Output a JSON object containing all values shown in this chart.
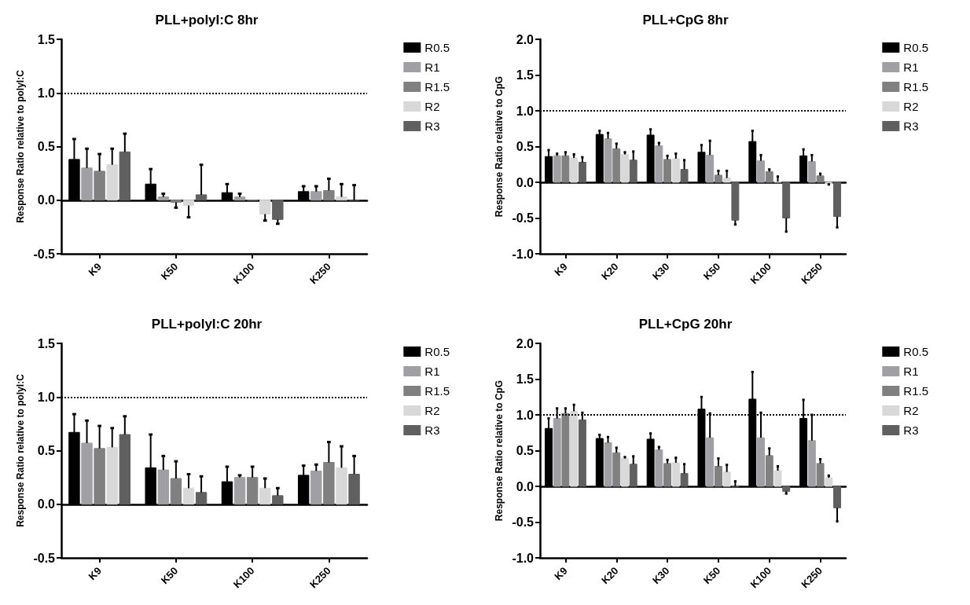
{
  "chart_data": [
    {
      "type": "bar",
      "title": "PLL+polyI:C 8hr",
      "ylabel": "Response Ratio relative to polyI:C",
      "categories": [
        "K9",
        "K50",
        "K100",
        "K250"
      ],
      "ylim": [
        -0.5,
        1.5
      ],
      "yticks": [
        -0.5,
        {
          "value": 0,
          "label": "0.0"
        },
        0.5,
        {
          "value": 1,
          "label": "1.0"
        },
        1.5
      ],
      "grid": false,
      "legend": "top right",
      "ref_lines": [
        {
          "axis": "y",
          "value": 1,
          "color": "#000000",
          "line_style": "dotted"
        }
      ],
      "series": [
        {
          "name": "R0.5",
          "color": "#000000",
          "values": [
            0.38,
            0.15,
            0.07,
            0.08
          ],
          "errors": [
            [
              0.38,
              0.57
            ],
            [
              0.15,
              0.29
            ],
            [
              0.07,
              0.15
            ],
            [
              0.08,
              0.13
            ]
          ]
        },
        {
          "name": "R1",
          "color": "#a0a0a4",
          "values": [
            0.3,
            0.03,
            0.03,
            0.08
          ],
          "errors": [
            [
              0.3,
              0.48
            ],
            [
              0.03,
              0.06
            ],
            [
              0.03,
              0.06
            ],
            [
              0.08,
              0.13
            ]
          ]
        },
        {
          "name": "R1.5",
          "color": "#808080",
          "values": [
            0.27,
            -0.02,
            0.0,
            0.09
          ],
          "errors": [
            [
              0.27,
              0.43
            ],
            [
              -0.07,
              -0.02
            ],
            null,
            [
              0.09,
              0.2
            ]
          ]
        },
        {
          "name": "R2",
          "color": "#d8d8d8",
          "values": [
            0.33,
            -0.05,
            -0.13,
            0.03
          ],
          "errors": [
            [
              0.33,
              0.48
            ],
            [
              -0.16,
              -0.05
            ],
            [
              -0.19,
              -0.13
            ],
            [
              0.03,
              0.15
            ]
          ]
        },
        {
          "name": "R3",
          "color": "#606060",
          "values": [
            0.45,
            0.05,
            -0.18,
            0.0
          ],
          "errors": [
            [
              0.45,
              0.62
            ],
            [
              0.05,
              0.33
            ],
            [
              -0.22,
              -0.18
            ],
            [
              0.0,
              0.14
            ]
          ]
        }
      ]
    },
    {
      "type": "bar",
      "title": "PLL+CpG 8hr",
      "ylabel": "Response Ratio relative to CpG",
      "categories": [
        "K9",
        "K20",
        "K30",
        "K50",
        "K100",
        "K250"
      ],
      "ylim": [
        -1,
        2
      ],
      "yticks": [
        {
          "value": -1,
          "label": "-1.0"
        },
        -0.5,
        {
          "value": 0,
          "label": "0.0"
        },
        0.5,
        {
          "value": 1,
          "label": "1.0"
        },
        1.5,
        {
          "value": 2,
          "label": "2.0"
        }
      ],
      "grid": false,
      "legend": "top right",
      "ref_lines": [
        {
          "axis": "y",
          "value": 1,
          "color": "#000000",
          "line_style": "dotted"
        }
      ],
      "series": [
        {
          "name": "R0.5",
          "color": "#000000",
          "values": [
            0.36,
            0.67,
            0.66,
            0.42,
            0.57,
            0.37
          ],
          "errors": [
            [
              0.36,
              0.45
            ],
            [
              0.67,
              0.72
            ],
            [
              0.66,
              0.74
            ],
            [
              0.42,
              0.52
            ],
            [
              0.57,
              0.72
            ],
            [
              0.37,
              0.46
            ]
          ]
        },
        {
          "name": "R1",
          "color": "#a0a0a4",
          "values": [
            0.37,
            0.61,
            0.51,
            0.38,
            0.3,
            0.29
          ],
          "errors": [
            [
              0.37,
              0.4
            ],
            [
              0.61,
              0.69
            ],
            [
              0.51,
              0.55
            ],
            [
              0.38,
              0.58
            ],
            [
              0.3,
              0.38
            ],
            [
              0.29,
              0.38
            ]
          ]
        },
        {
          "name": "R1.5",
          "color": "#808080",
          "values": [
            0.37,
            0.47,
            0.32,
            0.1,
            0.15,
            0.09
          ],
          "errors": [
            [
              0.37,
              0.42
            ],
            [
              0.47,
              0.54
            ],
            [
              0.32,
              0.37
            ],
            [
              0.1,
              0.16
            ],
            [
              0.15,
              0.18
            ],
            [
              0.09,
              0.12
            ]
          ]
        },
        {
          "name": "R2",
          "color": "#d8d8d8",
          "values": [
            0.34,
            0.39,
            0.33,
            0.06,
            0.01,
            -0.02
          ],
          "errors": [
            [
              0.34,
              0.39
            ],
            [
              0.39,
              0.42
            ],
            [
              0.33,
              0.4
            ],
            [
              0.06,
              0.16
            ],
            [
              0.01,
              0.08
            ],
            [
              -0.03,
              -0.02
            ]
          ]
        },
        {
          "name": "R3",
          "color": "#606060",
          "values": [
            0.28,
            0.31,
            0.18,
            -0.53,
            -0.5,
            -0.48
          ],
          "errors": [
            [
              0.28,
              0.35
            ],
            [
              0.31,
              0.43
            ],
            [
              0.18,
              0.31
            ],
            [
              -0.59,
              -0.53
            ],
            [
              -0.69,
              -0.5
            ],
            [
              -0.63,
              -0.48
            ]
          ]
        }
      ]
    },
    {
      "type": "bar",
      "title": "PLL+polyI:C 20hr",
      "ylabel": "Response Ratio relative to polyI:C",
      "categories": [
        "K9",
        "K50",
        "K100",
        "K250"
      ],
      "ylim": [
        -0.5,
        1.5
      ],
      "yticks": [
        -0.5,
        {
          "value": 0,
          "label": "0.0"
        },
        0.5,
        {
          "value": 1,
          "label": "1.0"
        },
        1.5
      ],
      "grid": false,
      "legend": "top right",
      "ref_lines": [
        {
          "axis": "y",
          "value": 1,
          "color": "#000000",
          "line_style": "dotted"
        }
      ],
      "series": [
        {
          "name": "R0.5",
          "color": "#000000",
          "values": [
            0.67,
            0.34,
            0.21,
            0.27
          ],
          "errors": [
            [
              0.67,
              0.84
            ],
            [
              0.34,
              0.65
            ],
            [
              0.21,
              0.35
            ],
            [
              0.27,
              0.36
            ]
          ]
        },
        {
          "name": "R1",
          "color": "#a0a0a4",
          "values": [
            0.57,
            0.32,
            0.25,
            0.31
          ],
          "errors": [
            [
              0.57,
              0.78
            ],
            [
              0.32,
              0.45
            ],
            [
              0.25,
              0.27
            ],
            [
              0.31,
              0.37
            ]
          ]
        },
        {
          "name": "R1.5",
          "color": "#808080",
          "values": [
            0.52,
            0.24,
            0.25,
            0.39
          ],
          "errors": [
            [
              0.52,
              0.73
            ],
            [
              0.24,
              0.4
            ],
            [
              0.25,
              0.35
            ],
            [
              0.39,
              0.58
            ]
          ]
        },
        {
          "name": "R2",
          "color": "#d8d8d8",
          "values": [
            0.53,
            0.15,
            0.15,
            0.34
          ],
          "errors": [
            [
              0.53,
              0.71
            ],
            [
              0.15,
              0.28
            ],
            [
              0.15,
              0.24
            ],
            [
              0.34,
              0.54
            ]
          ]
        },
        {
          "name": "R3",
          "color": "#606060",
          "values": [
            0.65,
            0.11,
            0.08,
            0.28
          ],
          "errors": [
            [
              0.65,
              0.82
            ],
            [
              0.11,
              0.26
            ],
            [
              0.08,
              0.15
            ],
            [
              0.28,
              0.45
            ]
          ]
        }
      ]
    },
    {
      "type": "bar",
      "title": "PLL+CpG 20hr",
      "ylabel": "Response Ratio relative to CpG",
      "categories": [
        "K9",
        "K20",
        "K30",
        "K50",
        "K100",
        "K250"
      ],
      "ylim": [
        -1,
        2
      ],
      "yticks": [
        {
          "value": -1,
          "label": "-1.0"
        },
        -0.5,
        {
          "value": 0,
          "label": "0.0"
        },
        0.5,
        {
          "value": 1,
          "label": "1.0"
        },
        1.5,
        {
          "value": 2,
          "label": "2.0"
        }
      ],
      "grid": false,
      "legend": "top right",
      "ref_lines": [
        {
          "axis": "y",
          "value": 1,
          "color": "#000000",
          "line_style": "dotted"
        }
      ],
      "series": [
        {
          "name": "R0.5",
          "color": "#000000",
          "values": [
            0.81,
            0.67,
            0.66,
            1.08,
            1.22,
            0.95
          ],
          "errors": [
            [
              0.81,
              0.95
            ],
            [
              0.67,
              0.72
            ],
            [
              0.66,
              0.74
            ],
            [
              1.08,
              1.25
            ],
            [
              1.22,
              1.6
            ],
            [
              0.95,
              1.21
            ]
          ]
        },
        {
          "name": "R1",
          "color": "#a0a0a4",
          "values": [
            0.95,
            0.61,
            0.51,
            0.68,
            0.68,
            0.64
          ],
          "errors": [
            [
              0.95,
              1.09
            ],
            [
              0.61,
              0.69
            ],
            [
              0.51,
              0.55
            ],
            [
              0.68,
              1.02
            ],
            [
              0.68,
              1.03
            ],
            [
              0.64,
              1.0
            ]
          ]
        },
        {
          "name": "R1.5",
          "color": "#808080",
          "values": [
            1.02,
            0.47,
            0.32,
            0.28,
            0.43,
            0.32
          ],
          "errors": [
            [
              1.02,
              1.09
            ],
            [
              0.47,
              0.54
            ],
            [
              0.32,
              0.37
            ],
            [
              0.28,
              0.39
            ],
            [
              0.43,
              0.53
            ],
            [
              0.32,
              0.38
            ]
          ]
        },
        {
          "name": "R2",
          "color": "#d8d8d8",
          "values": [
            1.05,
            0.39,
            0.33,
            0.2,
            0.22,
            0.12
          ],
          "errors": [
            [
              1.05,
              1.14
            ],
            [
              0.39,
              0.41
            ],
            [
              0.33,
              0.4
            ],
            [
              0.2,
              0.3
            ],
            [
              0.22,
              0.28
            ],
            [
              0.12,
              0.15
            ]
          ]
        },
        {
          "name": "R3",
          "color": "#606060",
          "values": [
            0.93,
            0.31,
            0.18,
            0.0,
            -0.07,
            -0.3
          ],
          "errors": [
            [
              0.93,
              1.03
            ],
            [
              0.31,
              0.42
            ],
            [
              0.18,
              0.31
            ],
            [
              0.0,
              0.07
            ],
            [
              -0.1,
              -0.07
            ],
            [
              -0.49,
              -0.3
            ]
          ]
        }
      ]
    }
  ]
}
